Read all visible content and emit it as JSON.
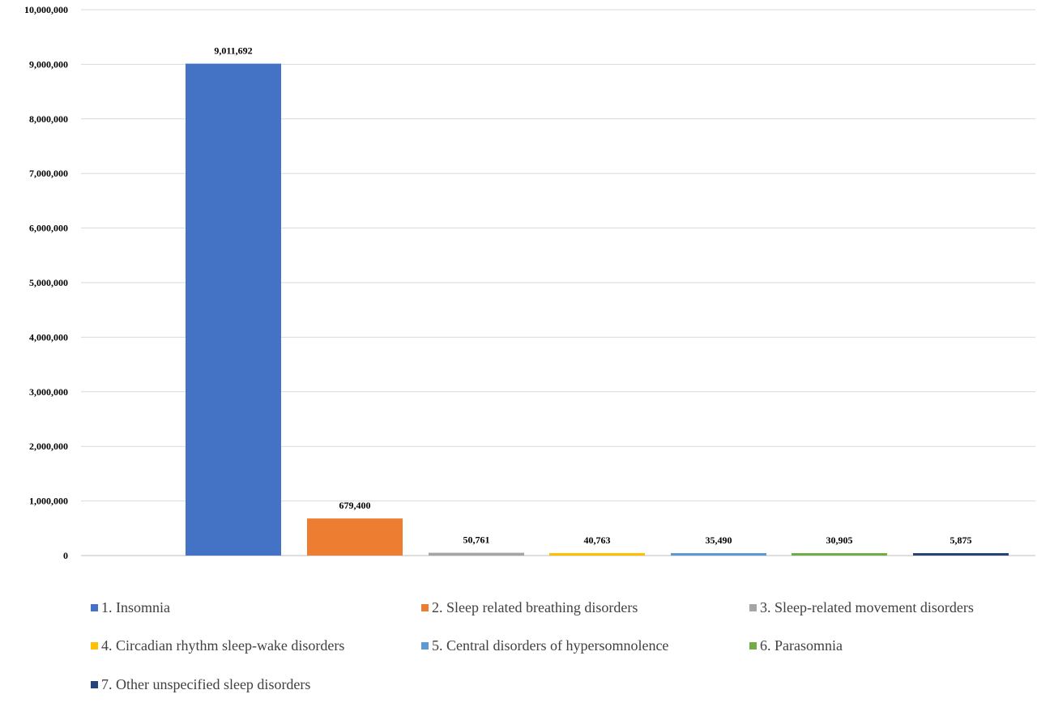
{
  "chart_data": {
    "type": "bar",
    "title": "",
    "xlabel": "",
    "ylabel": "",
    "ylim": [
      0,
      10000000
    ],
    "yticks": [
      0,
      1000000,
      2000000,
      3000000,
      4000000,
      5000000,
      6000000,
      7000000,
      8000000,
      9000000,
      10000000
    ],
    "ytick_labels": [
      "0",
      "1,000,000",
      "2,000,000",
      "3,000,000",
      "4,000,000",
      "5,000,000",
      "6,000,000",
      "7,000,000",
      "8,000,000",
      "9,000,000",
      "10,000,000"
    ],
    "grid": true,
    "legend_position": "bottom",
    "categories": [
      "1. Insomnia",
      "2. Sleep related breathing disorders",
      "3. Sleep-related movement disorders",
      "4. Circadian rhythm sleep-wake disorders",
      "5. Central disorders of hypersomnolence",
      "6. Parasomnia",
      "7. Other unspecified sleep disorders"
    ],
    "values": [
      9011692,
      679400,
      50761,
      40763,
      35490,
      30905,
      5875
    ],
    "value_labels": [
      "9,011,692",
      "679,400",
      "50,761",
      "40,763",
      "35,490",
      "30,905",
      "5,875"
    ],
    "colors": [
      "#4472c4",
      "#ed7d31",
      "#a5a5a5",
      "#ffc000",
      "#5b9bd5",
      "#70ad47",
      "#264478"
    ]
  }
}
